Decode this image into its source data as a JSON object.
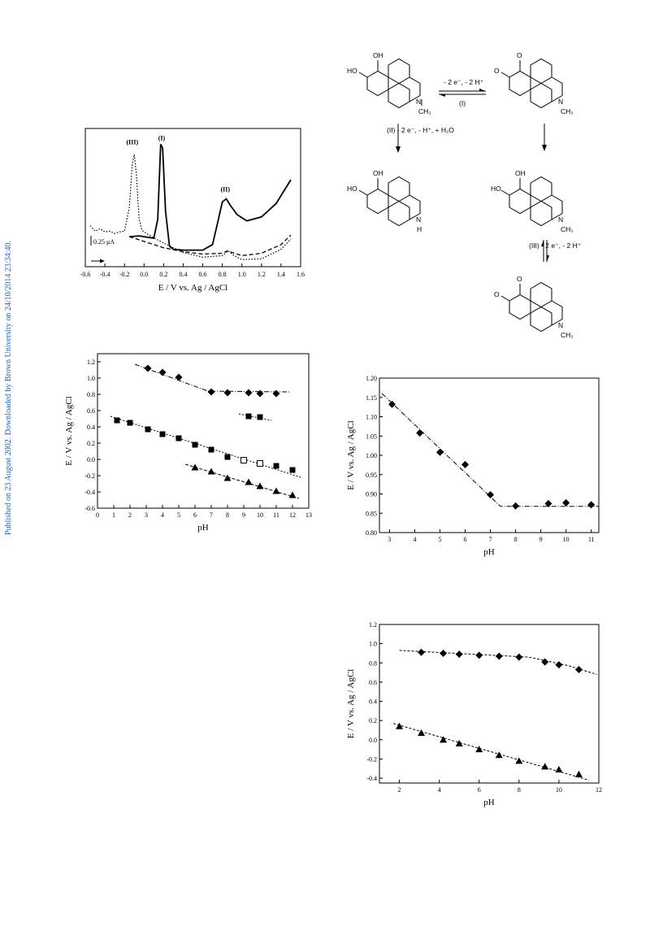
{
  "side_note": "Published on 23 August 2002. Downloaded by Brown University on 24/10/2014 23:34:40.",
  "scheme": {
    "arrow_top": [
      "- 2 e⁻, - 2 H⁺",
      "(I)"
    ],
    "arrow_left": "(II)   - 2 e⁻, - H⁺, + H₂O",
    "arrow_right": "(III)   - 2 e⁻, - 2 H⁺",
    "atoms": {
      "OH": "OH",
      "HO": "HO",
      "O": "O",
      "N": "N",
      "CH3": "CH₃",
      "H": "H"
    }
  },
  "chart_data": [
    {
      "type": "line",
      "xlabel": "E / V vs. Ag / AgCl",
      "ylabel": "",
      "xlim": [
        -0.6,
        1.6
      ],
      "xticks": [
        "-0.6",
        "-0.4",
        "-0.2",
        "0.0",
        "0.2",
        "0.4",
        "0.6",
        "0.8",
        "1.0",
        "1.2",
        "1.4",
        "1.6"
      ],
      "scale_bar": "0.25 μA",
      "peak_labels": [
        "(III)",
        "(I)",
        "(II)"
      ],
      "series": [
        {
          "style": "solid",
          "x": [
            -0.15,
            -0.05,
            0.05,
            0.1,
            0.14,
            0.17,
            0.19,
            0.22,
            0.26,
            0.3,
            0.4,
            0.6,
            0.7,
            0.76,
            0.8,
            0.84,
            0.88,
            0.95,
            1.05,
            1.2,
            1.35,
            1.5
          ],
          "y": [
            0.38,
            0.39,
            0.37,
            0.36,
            0.6,
            1.55,
            1.5,
            0.7,
            0.26,
            0.22,
            0.21,
            0.21,
            0.28,
            0.6,
            0.82,
            0.86,
            0.78,
            0.66,
            0.58,
            0.63,
            0.8,
            1.1
          ]
        },
        {
          "style": "dashed",
          "x": [
            -0.15,
            0,
            0.2,
            0.4,
            0.6,
            0.8,
            0.85,
            0.9,
            1.0,
            1.2,
            1.4,
            1.5
          ],
          "y": [
            0.38,
            0.32,
            0.24,
            0.19,
            0.16,
            0.17,
            0.2,
            0.18,
            0.14,
            0.17,
            0.28,
            0.4
          ]
        },
        {
          "style": "dotted",
          "x": [
            -0.55,
            -0.5,
            -0.45,
            -0.4,
            -0.35,
            -0.3,
            -0.25,
            -0.2,
            -0.15,
            -0.12,
            -0.1,
            -0.08,
            -0.05,
            -0.02,
            0.05,
            0.2,
            0.4,
            0.6,
            0.8,
            0.86,
            0.92,
            1.0,
            1.2,
            1.4,
            1.5
          ],
          "y": [
            0.52,
            0.45,
            0.48,
            0.44,
            0.45,
            0.42,
            0.44,
            0.45,
            0.75,
            1.3,
            1.42,
            1.2,
            0.6,
            0.46,
            0.4,
            0.3,
            0.18,
            0.12,
            0.14,
            0.2,
            0.14,
            0.09,
            0.1,
            0.22,
            0.35
          ]
        }
      ]
    },
    {
      "type": "scatter",
      "xlabel": "pH",
      "ylabel": "E / V vs. Ag / AgCl",
      "xlim": [
        0,
        13
      ],
      "ylim": [
        -0.6,
        1.3
      ],
      "xticks": [
        "0",
        "1",
        "2",
        "3",
        "4",
        "5",
        "6",
        "7",
        "8",
        "9",
        "10",
        "11",
        "12",
        "13"
      ],
      "yticks": [
        "-0.6",
        "-0.4",
        "-0.2",
        "0.0",
        "0.2",
        "0.4",
        "0.6",
        "0.8",
        "1.0",
        "1.2"
      ],
      "series": [
        {
          "marker": "diamond",
          "x": [
            3.1,
            4.0,
            5.0,
            7.0,
            8.0,
            9.3,
            10.0,
            11.0
          ],
          "y": [
            1.12,
            1.07,
            1.01,
            0.83,
            0.82,
            0.82,
            0.81,
            0.81
          ]
        },
        {
          "marker": "square",
          "x": [
            1.2,
            2.0,
            3.1,
            4.0,
            5.0,
            6.0,
            7.0,
            8.0,
            10.0,
            11.0,
            12.0
          ],
          "y": [
            0.48,
            0.45,
            0.37,
            0.31,
            0.26,
            0.18,
            0.12,
            0.03,
            -0.05,
            -0.08,
            -0.13
          ]
        },
        {
          "marker": "square-open",
          "x": [
            9.0,
            10.0
          ],
          "y": [
            -0.01,
            -0.05
          ]
        },
        {
          "marker": "square",
          "x": [
            9.3,
            10.0
          ],
          "y": [
            0.53,
            0.52
          ]
        },
        {
          "marker": "triangle",
          "x": [
            6.0,
            7.0,
            8.0,
            9.3,
            10.0,
            11.0,
            12.0
          ],
          "y": [
            -0.1,
            -0.15,
            -0.23,
            -0.28,
            -0.33,
            -0.39,
            -0.44
          ]
        }
      ]
    },
    {
      "type": "scatter",
      "xlabel": "pH",
      "ylabel": "E / V vs. Ag / AgCl",
      "xlim": [
        2.6,
        11.3
      ],
      "ylim": [
        0.8,
        1.2
      ],
      "xticks": [
        "3",
        "4",
        "5",
        "6",
        "7",
        "8",
        "9",
        "10",
        "11"
      ],
      "yticks": [
        "0.80",
        "0.85",
        "0.90",
        "0.95",
        "1.00",
        "1.05",
        "1.10",
        "1.15",
        "1.20"
      ],
      "series": [
        {
          "marker": "diamond",
          "x": [
            3.1,
            4.2,
            5.0,
            6.0,
            7.0,
            8.0,
            9.3,
            10.0,
            11.0
          ],
          "y": [
            1.132,
            1.058,
            1.008,
            0.976,
            0.898,
            0.869,
            0.875,
            0.877,
            0.872
          ]
        }
      ]
    },
    {
      "type": "scatter",
      "xlabel": "pH",
      "ylabel": "E / V vs. Ag / AgCl",
      "xlim": [
        1,
        12
      ],
      "ylim": [
        -0.45,
        1.2
      ],
      "xticks": [
        "2",
        "4",
        "6",
        "8",
        "10",
        "12"
      ],
      "yticks": [
        "-0.4",
        "-0.2",
        "0.0",
        "0.2",
        "0.4",
        "0.6",
        "0.8",
        "1.0",
        "1.2"
      ],
      "series": [
        {
          "marker": "diamond",
          "x": [
            3.1,
            4.2,
            5.0,
            6.0,
            7.0,
            8.0,
            9.3,
            10.0,
            11.0
          ],
          "y": [
            0.91,
            0.9,
            0.89,
            0.88,
            0.87,
            0.86,
            0.81,
            0.78,
            0.73
          ]
        },
        {
          "marker": "triangle",
          "x": [
            2.0,
            3.1,
            4.2,
            5.0,
            6.0,
            7.0,
            8.0,
            9.3,
            10.0,
            11.0
          ],
          "y": [
            0.14,
            0.07,
            0.0,
            -0.04,
            -0.1,
            -0.16,
            -0.22,
            -0.28,
            -0.31,
            -0.36
          ]
        }
      ]
    }
  ]
}
